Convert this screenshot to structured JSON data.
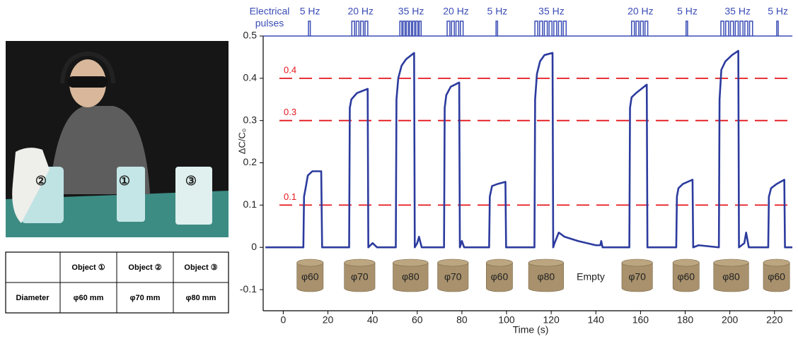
{
  "photo": {
    "labels": [
      "②",
      "①",
      "③"
    ]
  },
  "table": {
    "header": [
      "Object ①",
      "Object ②",
      "Object ③"
    ],
    "rows": [
      [
        "Diameter",
        "φ60 mm",
        "φ70 mm",
        "φ80 mm"
      ]
    ]
  },
  "chart_data": {
    "type": "line",
    "y_label": "ΔC/C₀",
    "x_label": "Time (s)",
    "xlim": [
      -9,
      228
    ],
    "xticks": [
      0,
      20,
      40,
      60,
      80,
      100,
      120,
      140,
      160,
      180,
      200,
      220
    ],
    "ylim": [
      -0.15,
      0.5
    ],
    "yticks": [
      -0.1,
      0,
      0.1,
      0.2,
      0.3,
      0.4,
      0.5
    ],
    "color": "#2c3b9e",
    "x": [
      -8,
      9,
      9.3,
      10,
      11,
      13,
      17,
      17.4,
      29.5,
      29.8,
      30.5,
      33,
      37.8,
      38.1,
      40,
      42,
      50.4,
      50.7,
      51.5,
      53,
      55,
      58.6,
      58.9,
      60,
      60.8,
      62,
      72,
      72.3,
      73,
      75,
      78.8,
      79.1,
      80,
      81,
      92.2,
      92.5,
      93.5,
      96,
      99.5,
      99.8,
      112.5,
      112.8,
      113.6,
      115,
      117,
      120.6,
      120.9,
      121.5,
      123.4,
      126,
      132,
      140,
      142,
      142.4,
      143,
      155,
      155.3,
      156,
      158,
      162.8,
      163.1,
      176,
      176.3,
      177,
      179,
      183.3,
      183.6,
      186,
      195.1,
      195.4,
      196.2,
      198,
      201,
      203.8,
      204.1,
      206.5,
      207.3,
      208.5,
      217.2,
      217.5,
      218.5,
      221,
      224.4,
      224.7,
      228
    ],
    "values": [
      0,
      0,
      0.12,
      0.14,
      0.17,
      0.18,
      0.18,
      0,
      0,
      0.33,
      0.35,
      0.365,
      0.375,
      0,
      0.01,
      0,
      0,
      0.35,
      0.4,
      0.43,
      0.445,
      0.46,
      0,
      0.01,
      0.025,
      0,
      0,
      0.33,
      0.36,
      0.38,
      0.39,
      0,
      0.015,
      0,
      0,
      0.12,
      0.145,
      0.15,
      0.155,
      0,
      0,
      0.35,
      0.41,
      0.44,
      0.455,
      0.46,
      0,
      0.01,
      0.035,
      0.025,
      0.015,
      0.005,
      0.005,
      0.015,
      0,
      0,
      0.33,
      0.355,
      0.365,
      0.385,
      0,
      0,
      0.12,
      0.14,
      0.15,
      0.16,
      0,
      0.005,
      0,
      0.35,
      0.42,
      0.44,
      0.455,
      0.465,
      0,
      0.01,
      0.035,
      0,
      0,
      0.12,
      0.14,
      0.15,
      0.16,
      0,
      0
    ],
    "thresholds": [
      0.1,
      0.3,
      0.4
    ],
    "threshold_color": "#e4161c",
    "pulses": {
      "title": [
        "Electrical",
        "pulses"
      ],
      "color": "#3b4db5",
      "values": [
        5,
        20,
        35,
        20,
        5,
        35,
        20,
        5,
        35,
        5
      ],
      "value_labels": [
        "5 Hz",
        "20 Hz",
        "35 Hz",
        "20 Hz",
        "5 Hz",
        "35 Hz",
        "20 Hz",
        "5 Hz",
        "35 Hz",
        "5 Hz"
      ],
      "start": [
        11.3,
        30.7,
        52.2,
        73.4,
        95.3,
        112.7,
        156,
        180.4,
        196,
        221
      ],
      "end": [
        12.6,
        38.6,
        62.3,
        81.3,
        96.4,
        127.5,
        164,
        181.5,
        211,
        222.1
      ]
    },
    "objects": {
      "color": "#a8916c",
      "x": [
        12,
        34.2,
        57,
        76,
        96.8,
        117.7,
        137.7,
        158.5,
        180.4,
        200.6,
        220.9
      ],
      "values": [
        60,
        70,
        80,
        70,
        60,
        80,
        null,
        70,
        60,
        80,
        60
      ],
      "value_labels": [
        "φ60",
        "φ70",
        "φ80",
        "φ70",
        "φ60",
        "φ80",
        "Empty",
        "φ70",
        "φ60",
        "φ80",
        "φ60"
      ]
    }
  }
}
